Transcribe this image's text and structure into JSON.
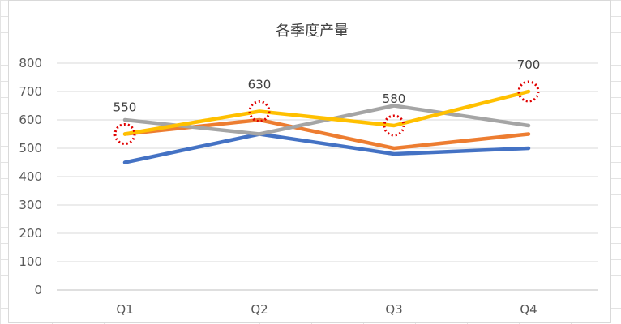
{
  "chart_data": {
    "type": "line",
    "title": "各季度产量",
    "categories": [
      "Q1",
      "Q2",
      "Q3",
      "Q4"
    ],
    "ylim": [
      0,
      800
    ],
    "yticks": [
      0,
      100,
      200,
      300,
      400,
      500,
      600,
      700,
      800
    ],
    "grid": true,
    "legend": "none",
    "series": [
      {
        "color": "#4472C4",
        "values": [
          450,
          550,
          480,
          500
        ]
      },
      {
        "color": "#ED7D31",
        "values": [
          550,
          600,
          500,
          550
        ]
      },
      {
        "color": "#A5A5A5",
        "values": [
          600,
          550,
          650,
          580
        ]
      },
      {
        "color": "#FFC000",
        "values": [
          550,
          630,
          580,
          700
        ]
      }
    ],
    "annotations": {
      "series_index": 3,
      "labels": [
        "550",
        "630",
        "580",
        "700"
      ],
      "marker": "red-dotted-circle",
      "marker_color": "#E00000"
    }
  }
}
